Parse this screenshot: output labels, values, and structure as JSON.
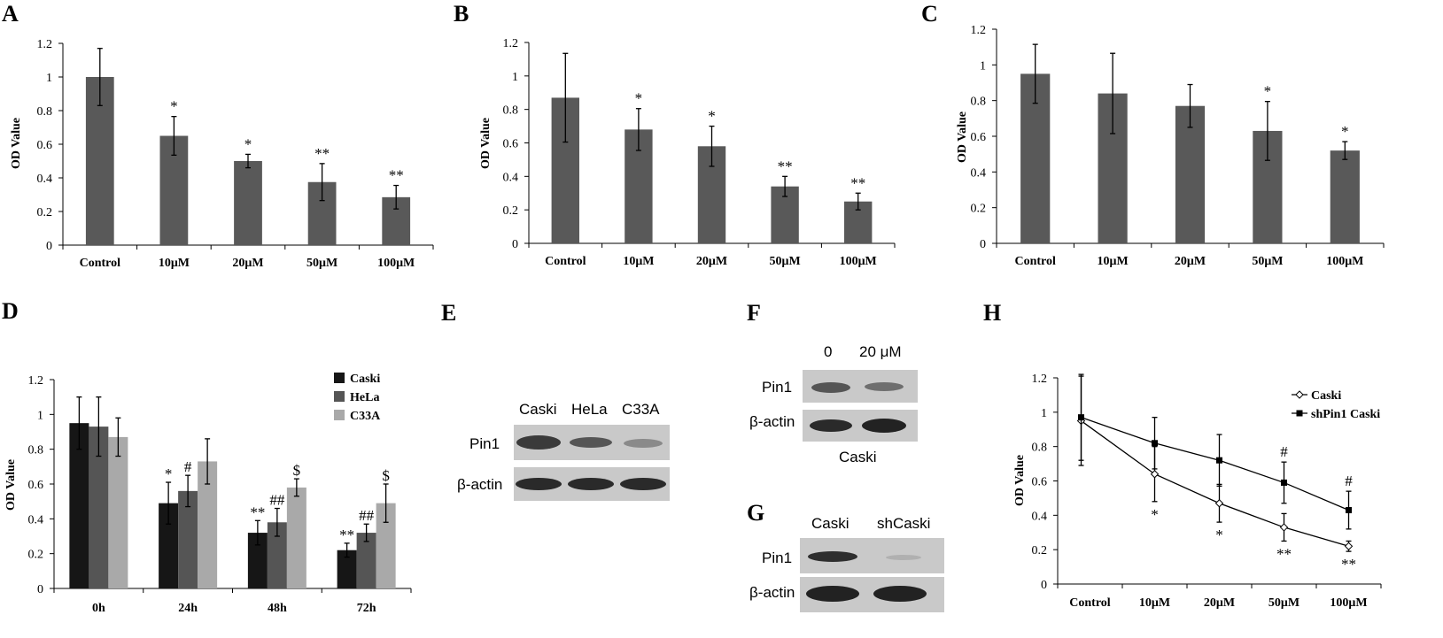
{
  "colors": {
    "bar_gray": "#595959",
    "caski": "#161616",
    "hela": "#555555",
    "c33a": "#a9a9a9",
    "blot_bg": "#c8c8c8"
  },
  "chart_data": [
    {
      "panel": "A",
      "type": "bar",
      "ylabel": "OD Value",
      "ylim": [
        0,
        1.2
      ],
      "yticks": [
        "0",
        "0.2",
        "0.4",
        "0.6",
        "0.8",
        "1",
        "1.2"
      ],
      "categories": [
        "Control",
        "10μM",
        "20μM",
        "50μM",
        "100μM"
      ],
      "values": [
        1.0,
        0.65,
        0.5,
        0.375,
        0.285
      ],
      "errors": [
        0.17,
        0.115,
        0.04,
        0.11,
        0.07
      ],
      "annotations": [
        "",
        "*",
        "*",
        "**",
        "**"
      ]
    },
    {
      "panel": "B",
      "type": "bar",
      "ylabel": "OD Value",
      "ylim": [
        0,
        1.2
      ],
      "yticks": [
        "0",
        "0.2",
        "0.4",
        "0.6",
        "0.8",
        "1",
        "1.2"
      ],
      "categories": [
        "Control",
        "10μM",
        "20μM",
        "50μM",
        "100μM"
      ],
      "values": [
        0.87,
        0.68,
        0.58,
        0.34,
        0.25
      ],
      "errors": [
        0.265,
        0.125,
        0.12,
        0.06,
        0.05
      ],
      "annotations": [
        "",
        "*",
        "*",
        "**",
        "**"
      ]
    },
    {
      "panel": "C",
      "type": "bar",
      "ylabel": "OD Value",
      "ylim": [
        0,
        1.2
      ],
      "yticks": [
        "0",
        "0.2",
        "0.4",
        "0.6",
        "0.8",
        "1",
        "1.2"
      ],
      "categories": [
        "Control",
        "10μM",
        "20μM",
        "50μM",
        "100μM"
      ],
      "values": [
        0.95,
        0.84,
        0.77,
        0.63,
        0.52
      ],
      "errors": [
        0.165,
        0.225,
        0.12,
        0.165,
        0.05
      ],
      "annotations": [
        "",
        "",
        "",
        "*",
        "*"
      ]
    },
    {
      "panel": "D",
      "type": "bar",
      "ylabel": "OD Value",
      "ylim": [
        0,
        1.2
      ],
      "yticks": [
        "0",
        "0.2",
        "0.4",
        "0.6",
        "0.8",
        "1",
        "1.2"
      ],
      "categories": [
        "0h",
        "24h",
        "48h",
        "72h"
      ],
      "legend_position": "top-right",
      "series": [
        {
          "name": "Caski",
          "values": [
            0.95,
            0.49,
            0.32,
            0.22
          ],
          "errors": [
            0.15,
            0.12,
            0.07,
            0.04
          ],
          "annotations": [
            "",
            "*",
            "**",
            "**"
          ]
        },
        {
          "name": "HeLa",
          "values": [
            0.93,
            0.56,
            0.38,
            0.32
          ],
          "errors": [
            0.17,
            0.09,
            0.08,
            0.05
          ],
          "annotations": [
            "",
            "#",
            "##",
            "##"
          ]
        },
        {
          "name": "C33A",
          "values": [
            0.87,
            0.73,
            0.58,
            0.49
          ],
          "errors": [
            0.11,
            0.13,
            0.05,
            0.11
          ],
          "annotations": [
            "",
            "",
            "$",
            "$"
          ]
        }
      ]
    },
    {
      "panel": "H",
      "type": "line",
      "ylabel": "OD Value",
      "ylim": [
        0,
        1.2
      ],
      "yticks": [
        "0",
        "0.2",
        "0.4",
        "0.6",
        "0.8",
        "1",
        "1.2"
      ],
      "categories": [
        "Control",
        "10μM",
        "20μM",
        "50μM",
        "100μM"
      ],
      "legend_position": "top-right",
      "series": [
        {
          "name": "Caski",
          "marker": "diamond",
          "values": [
            0.95,
            0.64,
            0.47,
            0.33,
            0.22
          ],
          "errors": [
            0.26,
            0.16,
            0.11,
            0.08,
            0.03
          ],
          "annotations": [
            "",
            "*",
            "*",
            "**",
            "**"
          ]
        },
        {
          "name": "shPin1 Caski",
          "marker": "square",
          "values": [
            0.97,
            0.82,
            0.72,
            0.59,
            0.43
          ],
          "errors": [
            0.25,
            0.15,
            0.15,
            0.12,
            0.11
          ],
          "annotations": [
            "",
            "",
            "",
            "#",
            "#"
          ]
        }
      ]
    }
  ],
  "panel_labels": {
    "A": "A",
    "B": "B",
    "C": "C",
    "D": "D",
    "E": "E",
    "F": "F",
    "G": "G",
    "H": "H"
  },
  "blots": {
    "E": {
      "lanes": [
        "Caski",
        "HeLa",
        "C33A"
      ],
      "rows": [
        "Pin1",
        "β-actin"
      ]
    },
    "F": {
      "lanes": [
        "0",
        "20 μM"
      ],
      "rows": [
        "Pin1",
        "β-actin"
      ],
      "caption": "Caski"
    },
    "G": {
      "lanes": [
        "Caski",
        "shCaski"
      ],
      "rows": [
        "Pin1",
        "β-actin"
      ]
    }
  }
}
